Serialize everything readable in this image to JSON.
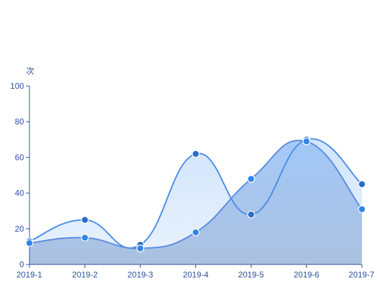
{
  "chart_data": {
    "type": "area",
    "ylabel": "次",
    "categories": [
      "2019-1",
      "2019-2",
      "2019-3",
      "2019-4",
      "2019-5",
      "2019-6",
      "2019-7"
    ],
    "ylim": [
      0,
      100
    ],
    "yticks": [
      0,
      20,
      40,
      60,
      80,
      100
    ],
    "grid": false,
    "smooth": true,
    "series": [
      {
        "values": [
          13,
          25,
          11,
          62,
          28,
          70,
          45
        ],
        "line_color": "#4a8ee6",
        "fill_top": "#cfe3fb",
        "fill_bottom": "#e9f2fd",
        "point_color": "#2a6cc8"
      },
      {
        "values": [
          12,
          15,
          9,
          18,
          48,
          69,
          31
        ],
        "line_color": "#5b8be0",
        "fill_top": "#9cc4f6",
        "fill_bottom": "#a8bede",
        "point_color": "#2f86e8"
      }
    ],
    "axis_color": "#2b4f9e"
  }
}
